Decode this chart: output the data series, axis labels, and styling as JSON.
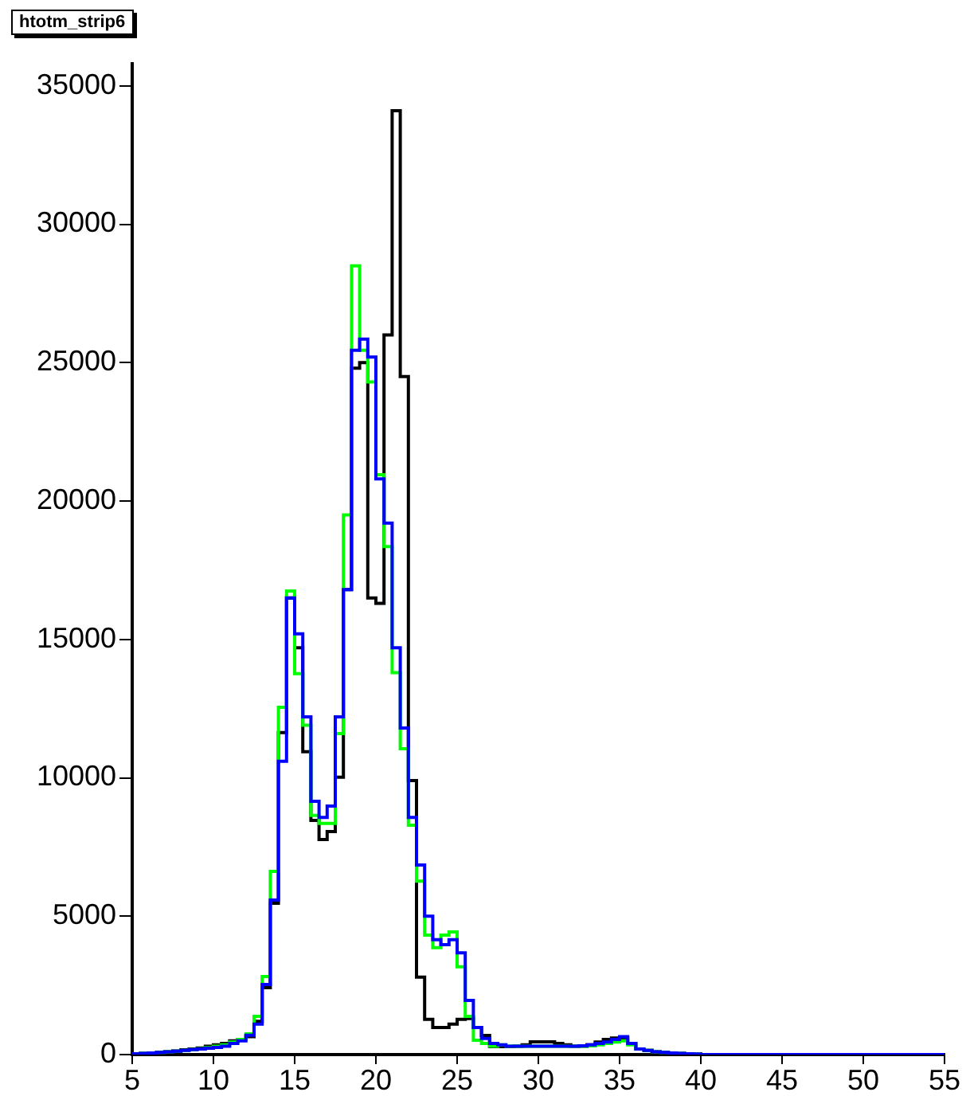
{
  "chart_data": {
    "type": "histogram",
    "title": "htotm_strip6",
    "bins": [
      5,
      5.5,
      6,
      6.5,
      7,
      7.5,
      8,
      8.5,
      9,
      9.5,
      10,
      10.5,
      11,
      11.5,
      12,
      12.5,
      13,
      13.5,
      14,
      14.5,
      15,
      15.5,
      16,
      16.5,
      17,
      17.5,
      18,
      18.5,
      19,
      19.5,
      20,
      20.5,
      21,
      21.5,
      22,
      22.5,
      23,
      23.5,
      24,
      24.5,
      25,
      25.5,
      26,
      26.5,
      27,
      27.5,
      28,
      28.5,
      29,
      29.5,
      30,
      30.5,
      31,
      31.5,
      32,
      32.5,
      33,
      33.5,
      34,
      34.5,
      35,
      35.5,
      36,
      36.5,
      37,
      37.5,
      38,
      38.5,
      39,
      39.5,
      40,
      40.5,
      41,
      41.5,
      42,
      42.5,
      43,
      43.5,
      44,
      44.5,
      45,
      45.5,
      46,
      46.5,
      47,
      47.5,
      48,
      48.5,
      49,
      49.5,
      50,
      50.5,
      51,
      51.5,
      52,
      52.5,
      53,
      53.5,
      54,
      54.5,
      55
    ],
    "series": [
      {
        "color": "#000000",
        "values": [
          30,
          40,
          60,
          80,
          100,
          130,
          170,
          200,
          240,
          300,
          350,
          400,
          500,
          550,
          650,
          1200,
          2420,
          5470,
          11630,
          16500,
          14700,
          10940,
          8460,
          7770,
          8060,
          10020,
          16800,
          24800,
          25000,
          16500,
          16300,
          26000,
          34100,
          24500,
          9900,
          2800,
          1270,
          980,
          980,
          1100,
          1270,
          1300,
          980,
          690,
          290,
          290,
          290,
          300,
          350,
          460,
          460,
          460,
          400,
          350,
          300,
          300,
          350,
          450,
          550,
          600,
          600,
          400,
          200,
          150,
          100,
          80,
          60,
          40,
          30,
          20,
          0,
          0,
          0,
          0,
          0,
          0,
          0,
          0,
          0,
          0,
          0,
          0,
          0,
          0,
          0,
          0,
          0,
          0,
          0,
          0,
          0,
          0,
          0,
          0,
          0,
          0,
          0,
          0,
          0,
          0
        ]
      },
      {
        "color": "#00ff00",
        "values": [
          30,
          40,
          60,
          80,
          100,
          120,
          150,
          180,
          210,
          250,
          300,
          350,
          450,
          550,
          750,
          1380,
          2820,
          6620,
          12550,
          16750,
          13760,
          11900,
          8640,
          8350,
          8350,
          11600,
          19500,
          28500,
          25450,
          24300,
          20950,
          18350,
          13800,
          11050,
          8290,
          6270,
          4320,
          3860,
          4320,
          4430,
          3170,
          1380,
          520,
          400,
          300,
          350,
          300,
          300,
          300,
          300,
          300,
          300,
          300,
          300,
          300,
          300,
          320,
          350,
          400,
          450,
          500,
          350,
          200,
          150,
          100,
          80,
          60,
          40,
          30,
          20,
          0,
          0,
          0,
          0,
          0,
          0,
          0,
          0,
          0,
          0,
          0,
          0,
          0,
          0,
          0,
          0,
          0,
          0,
          0,
          0,
          0,
          0,
          0,
          0,
          0,
          0,
          0,
          0,
          0,
          0
        ]
      },
      {
        "color": "#0000ff",
        "values": [
          30,
          40,
          60,
          80,
          100,
          120,
          150,
          180,
          200,
          230,
          260,
          300,
          400,
          500,
          700,
          1100,
          2530,
          5580,
          10600,
          16500,
          15200,
          12200,
          9150,
          8570,
          8980,
          12200,
          16800,
          25450,
          25850,
          25200,
          20800,
          19200,
          14700,
          11800,
          8570,
          6850,
          5000,
          4150,
          3970,
          4150,
          3680,
          1960,
          980,
          580,
          400,
          350,
          300,
          300,
          300,
          300,
          300,
          300,
          300,
          300,
          300,
          320,
          350,
          400,
          450,
          550,
          650,
          400,
          200,
          150,
          100,
          80,
          60,
          40,
          30,
          20,
          0,
          0,
          0,
          0,
          0,
          0,
          0,
          0,
          0,
          0,
          0,
          0,
          0,
          0,
          0,
          0,
          0,
          0,
          0,
          0,
          0,
          0,
          0,
          0,
          0,
          0,
          0,
          0,
          0,
          0
        ]
      }
    ],
    "xlim": [
      5,
      55
    ],
    "xticks": [
      5,
      10,
      15,
      20,
      25,
      30,
      35,
      40,
      45,
      50,
      55
    ],
    "ylim": [
      0,
      35800
    ],
    "yticks": [
      0,
      5000,
      10000,
      15000,
      20000,
      25000,
      30000,
      35000
    ]
  }
}
